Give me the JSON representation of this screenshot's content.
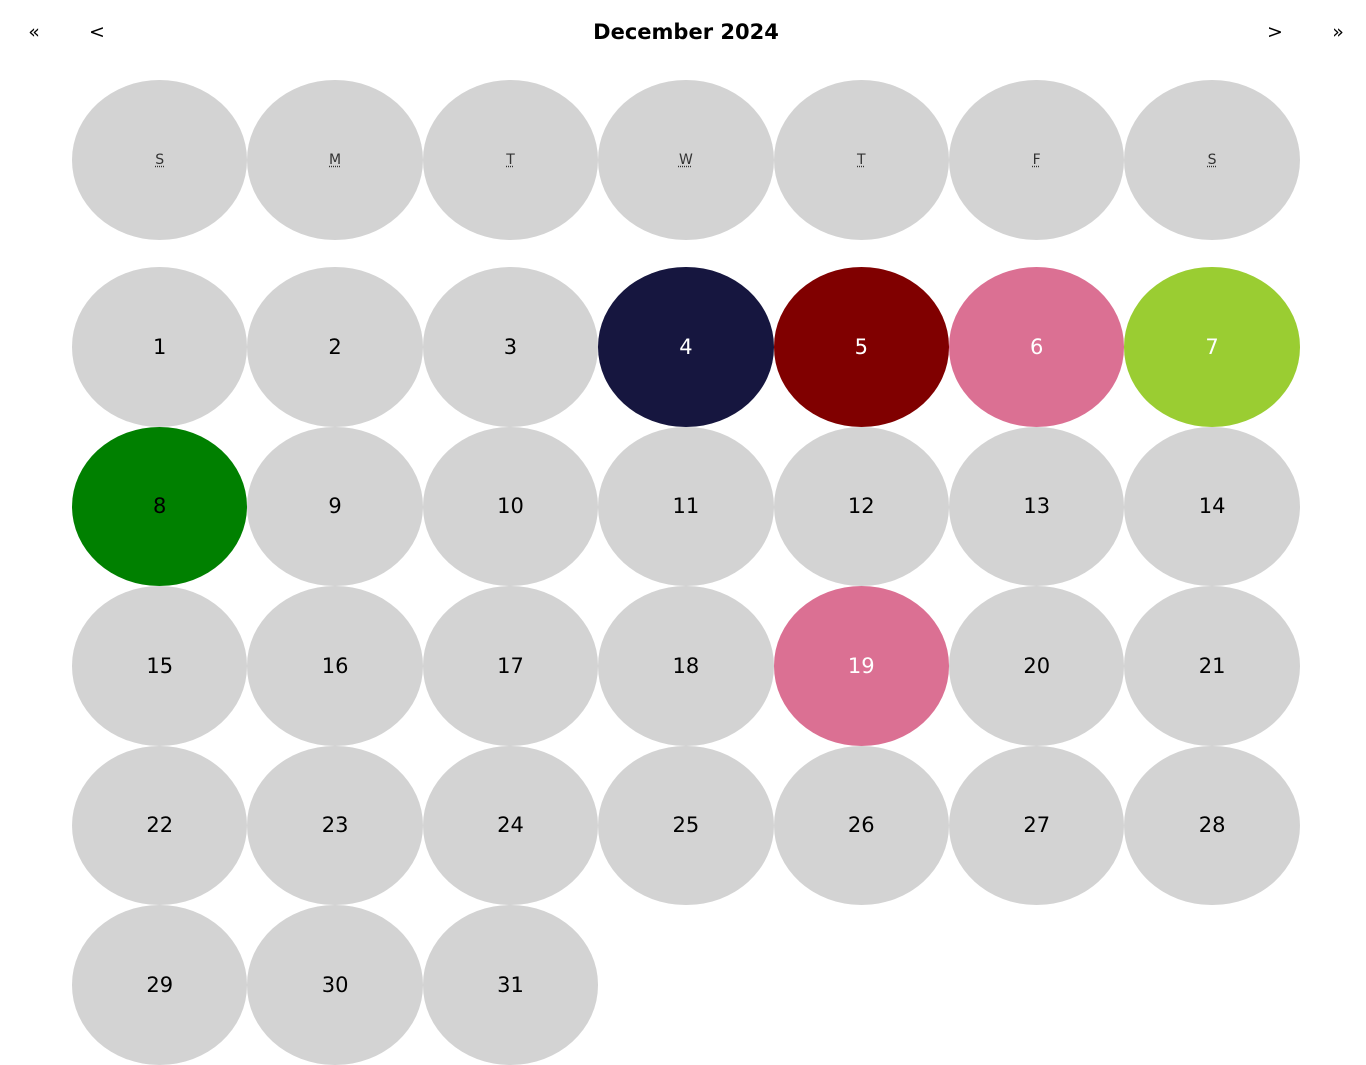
{
  "navigation": {
    "prev_year_label": "«",
    "prev_month_label": "<",
    "title": "December 2024",
    "next_month_label": ">",
    "next_year_label": "»"
  },
  "weekdays": [
    "S",
    "M",
    "T",
    "W",
    "T",
    "F",
    "S"
  ],
  "days": [
    {
      "label": "1",
      "color": "#d3d3d3",
      "text_color": "#000000"
    },
    {
      "label": "2",
      "color": "#d3d3d3",
      "text_color": "#000000"
    },
    {
      "label": "3",
      "color": "#d3d3d3",
      "text_color": "#000000"
    },
    {
      "label": "4",
      "color": "#16163f",
      "text_color": "#ffffff"
    },
    {
      "label": "5",
      "color": "#800000",
      "text_color": "#ffffff"
    },
    {
      "label": "6",
      "color": "#db7093",
      "text_color": "#ffffff"
    },
    {
      "label": "7",
      "color": "#9acd32",
      "text_color": "#ffffff"
    },
    {
      "label": "8",
      "color": "#008000",
      "text_color": "#000000"
    },
    {
      "label": "9",
      "color": "#d3d3d3",
      "text_color": "#000000"
    },
    {
      "label": "10",
      "color": "#d3d3d3",
      "text_color": "#000000"
    },
    {
      "label": "11",
      "color": "#d3d3d3",
      "text_color": "#000000"
    },
    {
      "label": "12",
      "color": "#d3d3d3",
      "text_color": "#000000"
    },
    {
      "label": "13",
      "color": "#d3d3d3",
      "text_color": "#000000"
    },
    {
      "label": "14",
      "color": "#d3d3d3",
      "text_color": "#000000"
    },
    {
      "label": "15",
      "color": "#d3d3d3",
      "text_color": "#000000"
    },
    {
      "label": "16",
      "color": "#d3d3d3",
      "text_color": "#000000"
    },
    {
      "label": "17",
      "color": "#d3d3d3",
      "text_color": "#000000"
    },
    {
      "label": "18",
      "color": "#d3d3d3",
      "text_color": "#000000"
    },
    {
      "label": "19",
      "color": "#db7093",
      "text_color": "#ffffff"
    },
    {
      "label": "20",
      "color": "#d3d3d3",
      "text_color": "#000000"
    },
    {
      "label": "21",
      "color": "#d3d3d3",
      "text_color": "#000000"
    },
    {
      "label": "22",
      "color": "#d3d3d3",
      "text_color": "#000000"
    },
    {
      "label": "23",
      "color": "#d3d3d3",
      "text_color": "#000000"
    },
    {
      "label": "24",
      "color": "#d3d3d3",
      "text_color": "#000000"
    },
    {
      "label": "25",
      "color": "#d3d3d3",
      "text_color": "#000000"
    },
    {
      "label": "26",
      "color": "#d3d3d3",
      "text_color": "#000000"
    },
    {
      "label": "27",
      "color": "#d3d3d3",
      "text_color": "#000000"
    },
    {
      "label": "28",
      "color": "#d3d3d3",
      "text_color": "#000000"
    },
    {
      "label": "29",
      "color": "#d3d3d3",
      "text_color": "#000000"
    },
    {
      "label": "30",
      "color": "#d3d3d3",
      "text_color": "#000000"
    },
    {
      "label": "31",
      "color": "#d3d3d3",
      "text_color": "#000000"
    }
  ]
}
